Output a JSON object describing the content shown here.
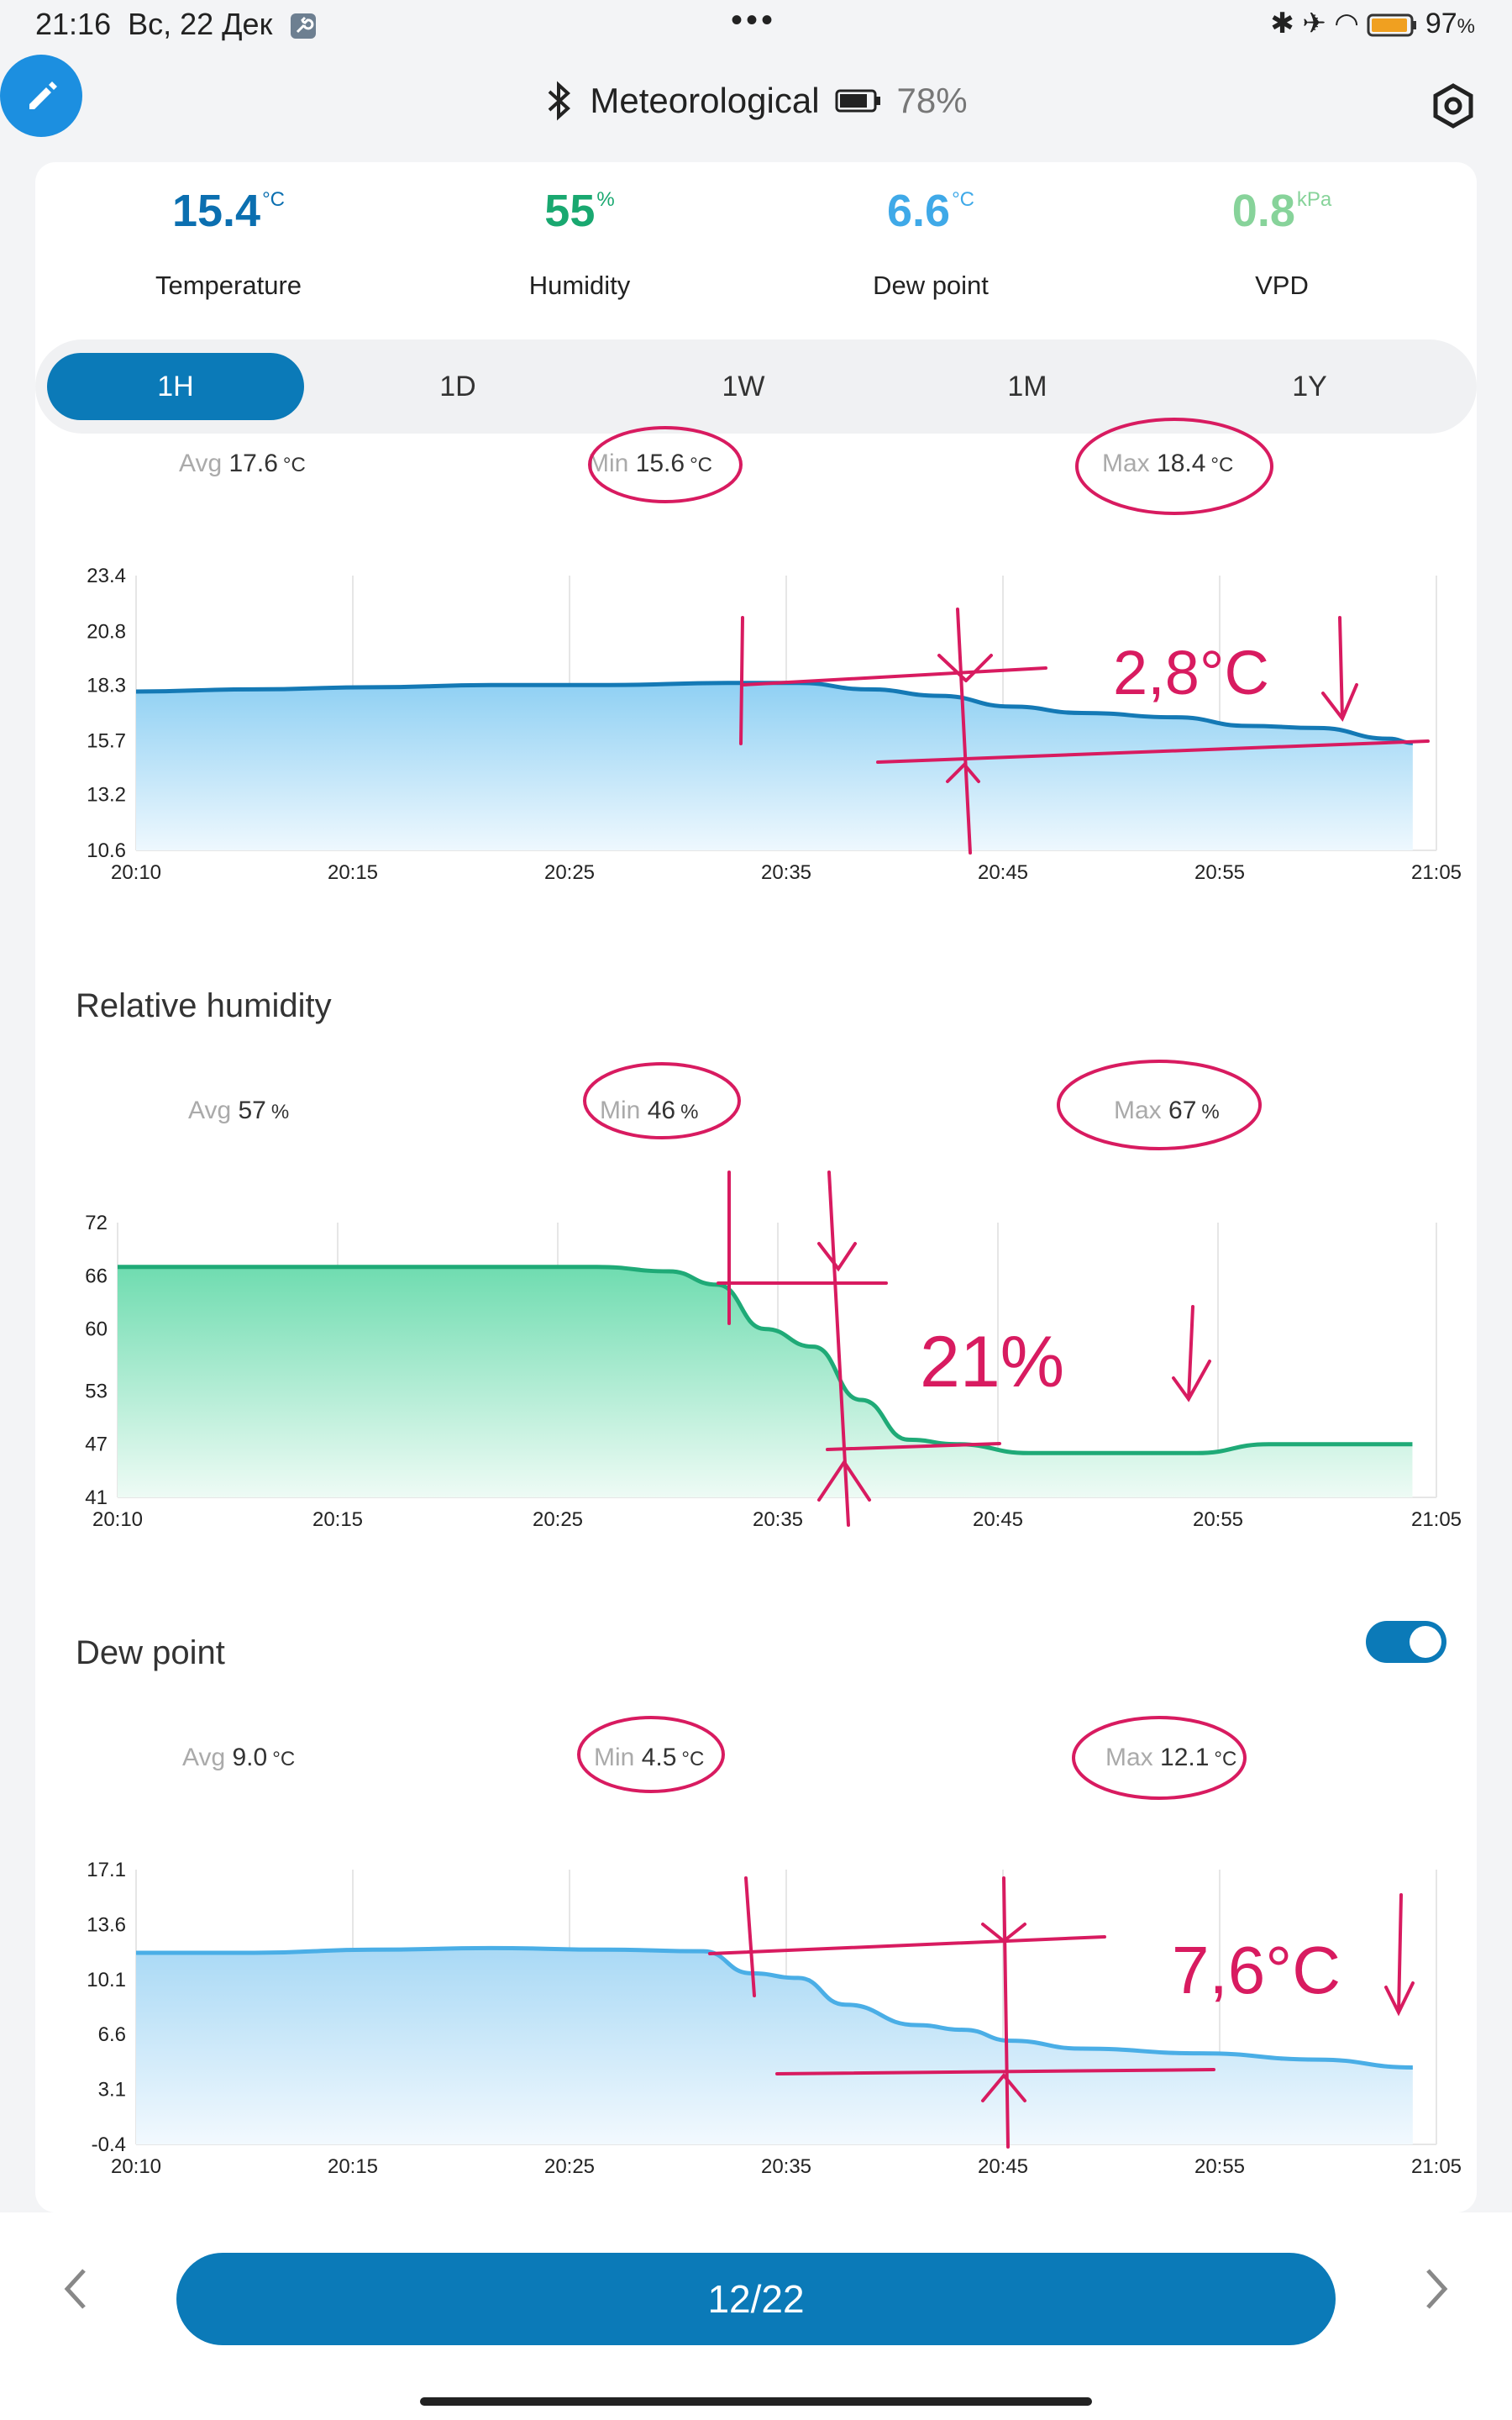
{
  "status_bar": {
    "time": "21:16",
    "date": "Вс, 22 Дек",
    "more": "•••",
    "battery_pct": "97",
    "battery_unit": "%"
  },
  "header": {
    "bt_icon": "bluetooth-icon",
    "title": "Meteorological",
    "battery_level": "78%",
    "settings_icon": "settings-hex-icon",
    "edit_icon": "pencil-icon"
  },
  "metrics": [
    {
      "value": "15.4",
      "unit": "°C",
      "label": "Temperature",
      "color": "#0b6fb0"
    },
    {
      "value": "55",
      "unit": "%",
      "label": "Humidity",
      "color": "#19a870"
    },
    {
      "value": "6.6",
      "unit": "°C",
      "label": "Dew point",
      "color": "#3fa9e8"
    },
    {
      "value": "0.8",
      "unit": "kPa",
      "label": "VPD",
      "color": "#87d39a"
    }
  ],
  "ranges": [
    "1H",
    "1D",
    "1W",
    "1M",
    "1Y"
  ],
  "active_range": "1H",
  "temperature": {
    "avg_key": "Avg",
    "avg": "17.6",
    "avg_unit": "°C",
    "min_key": "Min",
    "min": "15.6",
    "min_unit": "°C",
    "max_key": "Max",
    "max": "18.4",
    "max_unit": "°C"
  },
  "humidity": {
    "title": "Relative humidity",
    "avg_key": "Avg",
    "avg": "57",
    "avg_unit": "%",
    "min_key": "Min",
    "min": "46",
    "min_unit": "%",
    "max_key": "Max",
    "max": "67",
    "max_unit": "%"
  },
  "dewpoint": {
    "title": "Dew point",
    "avg_key": "Avg",
    "avg": "9.0",
    "avg_unit": "°C",
    "min_key": "Min",
    "min": "4.5",
    "min_unit": "°C",
    "max_key": "Max",
    "max": "12.1",
    "max_unit": "°C",
    "toggle_on": true
  },
  "annotations": {
    "temp": "2,8°C",
    "hum": "21%",
    "dew": "7,6°C"
  },
  "colors": {
    "accent": "#0b7ab8",
    "annotation": "#d81b60",
    "temp_line": "#1479b5",
    "hum_line": "#1faa77",
    "dew_line": "#4aaee6"
  },
  "footer": {
    "pager": "12/22",
    "prev_icon": "chevron-left-icon",
    "next_icon": "chevron-right-icon"
  },
  "chart_data": [
    {
      "type": "area",
      "x_ticks": [
        "20:10",
        "20:15",
        "20:25",
        "20:35",
        "20:45",
        "20:55",
        "21:05"
      ],
      "y_ticks": [
        "10.6",
        "13.2",
        "15.7",
        "18.3",
        "20.8",
        "23.4"
      ],
      "ylim": [
        10.6,
        23.4
      ],
      "series": [
        {
          "values": [
            [
              "20:10",
              18.0
            ],
            [
              "20:15",
              18.1
            ],
            [
              "20:20",
              18.2
            ],
            [
              "20:25",
              18.3
            ],
            [
              "20:30",
              18.3
            ],
            [
              "20:35",
              18.4
            ],
            [
              "20:38",
              18.4
            ],
            [
              "20:41",
              18.1
            ],
            [
              "20:44",
              17.8
            ],
            [
              "20:47",
              17.3
            ],
            [
              "20:50",
              17.0
            ],
            [
              "20:54",
              16.8
            ],
            [
              "20:57",
              16.4
            ],
            [
              "21:00",
              16.3
            ],
            [
              "21:03",
              15.8
            ],
            [
              "21:04",
              15.6
            ]
          ]
        }
      ]
    },
    {
      "type": "area",
      "x_ticks": [
        "20:10",
        "20:15",
        "20:25",
        "20:35",
        "20:45",
        "20:55",
        "21:05"
      ],
      "y_ticks": [
        "41",
        "47",
        "53",
        "60",
        "66",
        "72"
      ],
      "ylim": [
        41,
        72
      ],
      "series": [
        {
          "values": [
            [
              "20:10",
              67
            ],
            [
              "20:15",
              67
            ],
            [
              "20:20",
              67
            ],
            [
              "20:25",
              67
            ],
            [
              "20:30",
              67
            ],
            [
              "20:33",
              66.5
            ],
            [
              "20:35",
              65
            ],
            [
              "20:37",
              60
            ],
            [
              "20:39",
              58
            ],
            [
              "20:41",
              52
            ],
            [
              "20:43",
              47.5
            ],
            [
              "20:45",
              47
            ],
            [
              "20:48",
              46
            ],
            [
              "20:52",
              46
            ],
            [
              "20:55",
              46
            ],
            [
              "20:58",
              47
            ],
            [
              "21:01",
              47
            ],
            [
              "21:04",
              47
            ]
          ]
        }
      ]
    },
    {
      "type": "area",
      "x_ticks": [
        "20:10",
        "20:15",
        "20:25",
        "20:35",
        "20:45",
        "20:55",
        "21:05"
      ],
      "y_ticks": [
        "-0.4",
        "3.1",
        "6.6",
        "10.1",
        "13.6",
        "17.1"
      ],
      "ylim": [
        -0.4,
        17.1
      ],
      "series": [
        {
          "values": [
            [
              "20:10",
              11.8
            ],
            [
              "20:15",
              11.8
            ],
            [
              "20:20",
              12.0
            ],
            [
              "20:25",
              12.1
            ],
            [
              "20:30",
              12.0
            ],
            [
              "20:34",
              11.9
            ],
            [
              "20:36",
              10.5
            ],
            [
              "20:38",
              10.2
            ],
            [
              "20:40",
              8.5
            ],
            [
              "20:43",
              7.2
            ],
            [
              "20:45",
              6.9
            ],
            [
              "20:47",
              6.2
            ],
            [
              "20:50",
              5.7
            ],
            [
              "20:55",
              5.4
            ],
            [
              "21:00",
              5.0
            ],
            [
              "21:04",
              4.5
            ]
          ]
        }
      ]
    }
  ]
}
